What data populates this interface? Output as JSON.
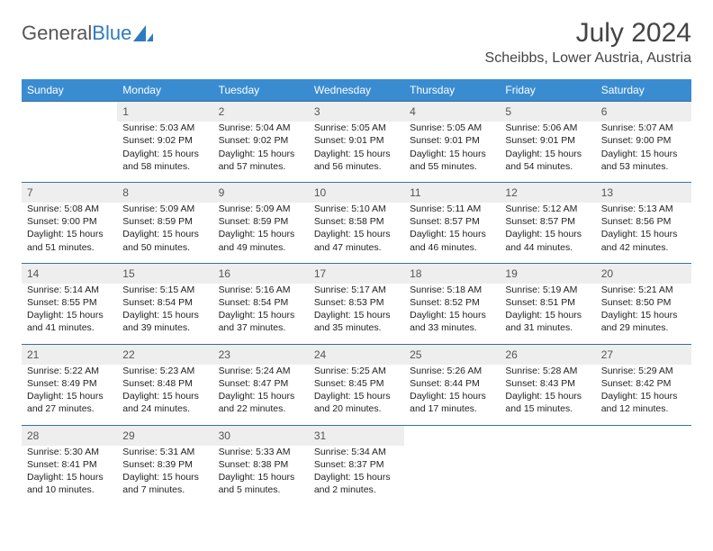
{
  "brand": {
    "part1": "General",
    "part2": "Blue"
  },
  "title": "July 2024",
  "location": "Scheibbs, Lower Austria, Austria",
  "colors": {
    "header_bg": "#3a8cd1",
    "header_text": "#ffffff",
    "daynum_bg": "#eeeeee",
    "border": "#3a6fa0",
    "text": "#222222",
    "muted": "#555555",
    "brand_blue": "#2f7bbf"
  },
  "typography": {
    "title_fontsize": 30,
    "location_fontsize": 16,
    "dayheader_fontsize": 12,
    "daynum_fontsize": 12,
    "cell_fontsize": 10.5
  },
  "day_headers": [
    "Sunday",
    "Monday",
    "Tuesday",
    "Wednesday",
    "Thursday",
    "Friday",
    "Saturday"
  ],
  "weeks": [
    {
      "numbers": [
        "",
        "1",
        "2",
        "3",
        "4",
        "5",
        "6"
      ],
      "cells": [
        null,
        {
          "sunrise": "Sunrise: 5:03 AM",
          "sunset": "Sunset: 9:02 PM",
          "daylight": "Daylight: 15 hours and 58 minutes."
        },
        {
          "sunrise": "Sunrise: 5:04 AM",
          "sunset": "Sunset: 9:02 PM",
          "daylight": "Daylight: 15 hours and 57 minutes."
        },
        {
          "sunrise": "Sunrise: 5:05 AM",
          "sunset": "Sunset: 9:01 PM",
          "daylight": "Daylight: 15 hours and 56 minutes."
        },
        {
          "sunrise": "Sunrise: 5:05 AM",
          "sunset": "Sunset: 9:01 PM",
          "daylight": "Daylight: 15 hours and 55 minutes."
        },
        {
          "sunrise": "Sunrise: 5:06 AM",
          "sunset": "Sunset: 9:01 PM",
          "daylight": "Daylight: 15 hours and 54 minutes."
        },
        {
          "sunrise": "Sunrise: 5:07 AM",
          "sunset": "Sunset: 9:00 PM",
          "daylight": "Daylight: 15 hours and 53 minutes."
        }
      ]
    },
    {
      "numbers": [
        "7",
        "8",
        "9",
        "10",
        "11",
        "12",
        "13"
      ],
      "cells": [
        {
          "sunrise": "Sunrise: 5:08 AM",
          "sunset": "Sunset: 9:00 PM",
          "daylight": "Daylight: 15 hours and 51 minutes."
        },
        {
          "sunrise": "Sunrise: 5:09 AM",
          "sunset": "Sunset: 8:59 PM",
          "daylight": "Daylight: 15 hours and 50 minutes."
        },
        {
          "sunrise": "Sunrise: 5:09 AM",
          "sunset": "Sunset: 8:59 PM",
          "daylight": "Daylight: 15 hours and 49 minutes."
        },
        {
          "sunrise": "Sunrise: 5:10 AM",
          "sunset": "Sunset: 8:58 PM",
          "daylight": "Daylight: 15 hours and 47 minutes."
        },
        {
          "sunrise": "Sunrise: 5:11 AM",
          "sunset": "Sunset: 8:57 PM",
          "daylight": "Daylight: 15 hours and 46 minutes."
        },
        {
          "sunrise": "Sunrise: 5:12 AM",
          "sunset": "Sunset: 8:57 PM",
          "daylight": "Daylight: 15 hours and 44 minutes."
        },
        {
          "sunrise": "Sunrise: 5:13 AM",
          "sunset": "Sunset: 8:56 PM",
          "daylight": "Daylight: 15 hours and 42 minutes."
        }
      ]
    },
    {
      "numbers": [
        "14",
        "15",
        "16",
        "17",
        "18",
        "19",
        "20"
      ],
      "cells": [
        {
          "sunrise": "Sunrise: 5:14 AM",
          "sunset": "Sunset: 8:55 PM",
          "daylight": "Daylight: 15 hours and 41 minutes."
        },
        {
          "sunrise": "Sunrise: 5:15 AM",
          "sunset": "Sunset: 8:54 PM",
          "daylight": "Daylight: 15 hours and 39 minutes."
        },
        {
          "sunrise": "Sunrise: 5:16 AM",
          "sunset": "Sunset: 8:54 PM",
          "daylight": "Daylight: 15 hours and 37 minutes."
        },
        {
          "sunrise": "Sunrise: 5:17 AM",
          "sunset": "Sunset: 8:53 PM",
          "daylight": "Daylight: 15 hours and 35 minutes."
        },
        {
          "sunrise": "Sunrise: 5:18 AM",
          "sunset": "Sunset: 8:52 PM",
          "daylight": "Daylight: 15 hours and 33 minutes."
        },
        {
          "sunrise": "Sunrise: 5:19 AM",
          "sunset": "Sunset: 8:51 PM",
          "daylight": "Daylight: 15 hours and 31 minutes."
        },
        {
          "sunrise": "Sunrise: 5:21 AM",
          "sunset": "Sunset: 8:50 PM",
          "daylight": "Daylight: 15 hours and 29 minutes."
        }
      ]
    },
    {
      "numbers": [
        "21",
        "22",
        "23",
        "24",
        "25",
        "26",
        "27"
      ],
      "cells": [
        {
          "sunrise": "Sunrise: 5:22 AM",
          "sunset": "Sunset: 8:49 PM",
          "daylight": "Daylight: 15 hours and 27 minutes."
        },
        {
          "sunrise": "Sunrise: 5:23 AM",
          "sunset": "Sunset: 8:48 PM",
          "daylight": "Daylight: 15 hours and 24 minutes."
        },
        {
          "sunrise": "Sunrise: 5:24 AM",
          "sunset": "Sunset: 8:47 PM",
          "daylight": "Daylight: 15 hours and 22 minutes."
        },
        {
          "sunrise": "Sunrise: 5:25 AM",
          "sunset": "Sunset: 8:45 PM",
          "daylight": "Daylight: 15 hours and 20 minutes."
        },
        {
          "sunrise": "Sunrise: 5:26 AM",
          "sunset": "Sunset: 8:44 PM",
          "daylight": "Daylight: 15 hours and 17 minutes."
        },
        {
          "sunrise": "Sunrise: 5:28 AM",
          "sunset": "Sunset: 8:43 PM",
          "daylight": "Daylight: 15 hours and 15 minutes."
        },
        {
          "sunrise": "Sunrise: 5:29 AM",
          "sunset": "Sunset: 8:42 PM",
          "daylight": "Daylight: 15 hours and 12 minutes."
        }
      ]
    },
    {
      "numbers": [
        "28",
        "29",
        "30",
        "31",
        "",
        "",
        ""
      ],
      "cells": [
        {
          "sunrise": "Sunrise: 5:30 AM",
          "sunset": "Sunset: 8:41 PM",
          "daylight": "Daylight: 15 hours and 10 minutes."
        },
        {
          "sunrise": "Sunrise: 5:31 AM",
          "sunset": "Sunset: 8:39 PM",
          "daylight": "Daylight: 15 hours and 7 minutes."
        },
        {
          "sunrise": "Sunrise: 5:33 AM",
          "sunset": "Sunset: 8:38 PM",
          "daylight": "Daylight: 15 hours and 5 minutes."
        },
        {
          "sunrise": "Sunrise: 5:34 AM",
          "sunset": "Sunset: 8:37 PM",
          "daylight": "Daylight: 15 hours and 2 minutes."
        },
        null,
        null,
        null
      ]
    }
  ]
}
